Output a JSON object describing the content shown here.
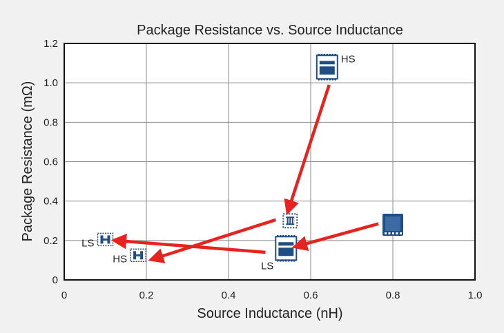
{
  "chart_data": {
    "type": "scatter",
    "title": "Package Resistance vs. Source Inductance",
    "xlabel": "Source Inductance (nH)",
    "ylabel": "Package Resistance (mΩ)",
    "xlim": [
      0,
      1.0
    ],
    "ylim": [
      0,
      1.2
    ],
    "xticks": [
      0,
      0.2,
      0.4,
      0.6,
      0.8,
      1.0
    ],
    "xtick_labels": [
      "0",
      "0.2",
      "0.4",
      "0.6",
      "0.8",
      "1.0"
    ],
    "yticks": [
      0,
      0.2,
      0.4,
      0.6,
      0.8,
      1.0,
      1.2
    ],
    "ytick_labels": [
      "0",
      "0.2",
      "0.4",
      "0.6",
      "0.8",
      "1.0",
      "1.2"
    ],
    "grid": true,
    "points": [
      {
        "id": "p-hs-top",
        "x": 0.64,
        "y": 1.08,
        "label": "HS",
        "label_side": "right",
        "style": "tall-dotted-frame"
      },
      {
        "id": "p-small-mid",
        "x": 0.55,
        "y": 0.3,
        "label": "",
        "label_side": "",
        "style": "small-dotted-square"
      },
      {
        "id": "p-ls-mid",
        "x": 0.54,
        "y": 0.16,
        "label": "LS",
        "label_side": "left-below",
        "style": "tall-dotted-frame"
      },
      {
        "id": "p-solid",
        "x": 0.8,
        "y": 0.28,
        "label": "",
        "label_side": "",
        "style": "solid-square"
      },
      {
        "id": "p-ls-left",
        "x": 0.1,
        "y": 0.205,
        "label": "LS",
        "label_side": "left",
        "style": "bridge"
      },
      {
        "id": "p-hs-left",
        "x": 0.18,
        "y": 0.125,
        "label": "HS",
        "label_side": "left",
        "style": "bridge"
      }
    ],
    "arrows": [
      {
        "from": [
          0.645,
          0.99
        ],
        "to": [
          0.545,
          0.35
        ]
      },
      {
        "from": [
          0.515,
          0.305
        ],
        "to": [
          0.215,
          0.105
        ]
      },
      {
        "from": [
          0.49,
          0.14
        ],
        "to": [
          0.125,
          0.2
        ]
      },
      {
        "from": [
          0.765,
          0.285
        ],
        "to": [
          0.565,
          0.17
        ]
      }
    ],
    "colors": {
      "arrow": "#e52420",
      "icon": "#1f4e85",
      "grid": "#8a8a8a",
      "plot_bg": "#ffffff",
      "page_bg": "#f1f1f1"
    }
  }
}
